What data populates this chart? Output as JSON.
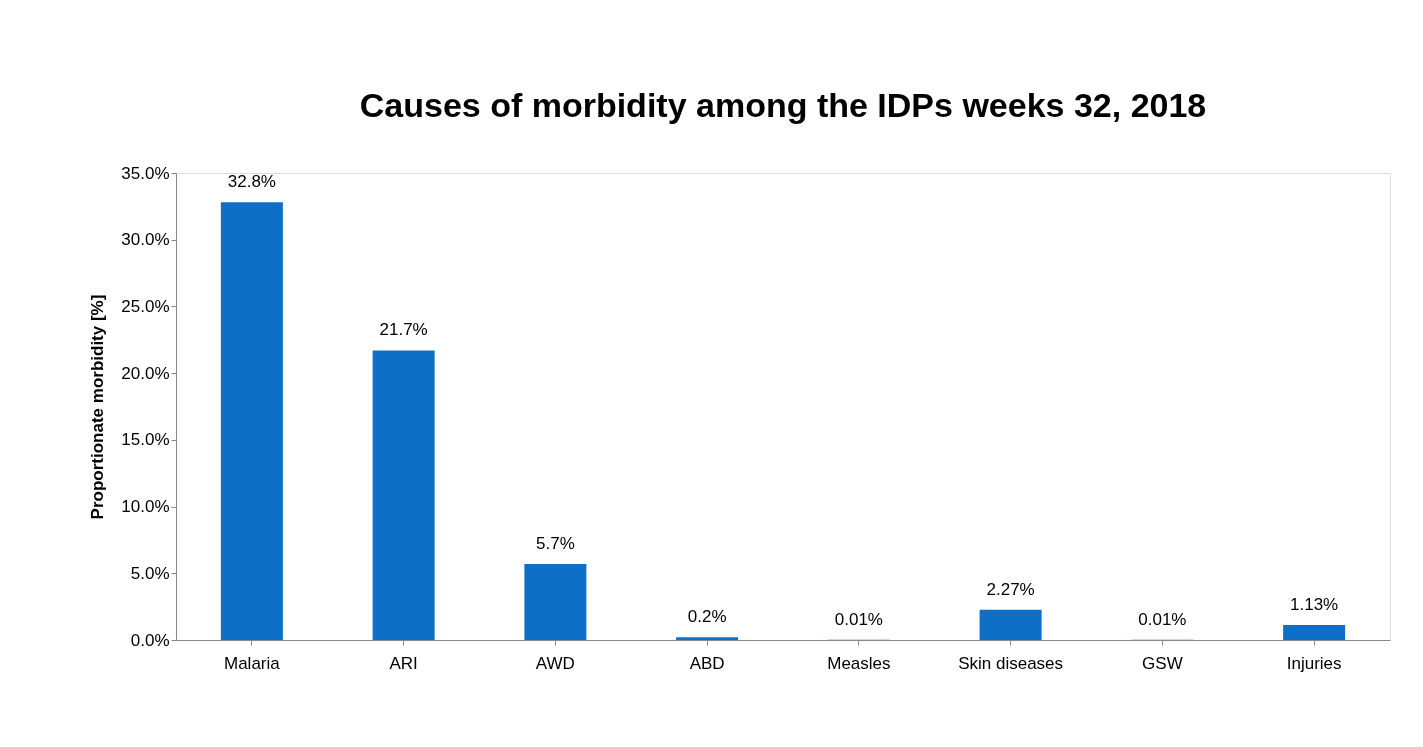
{
  "chart_data": {
    "type": "bar",
    "title": "Causes of morbidity among the IDPs weeks 32, 2018",
    "ylabel": "Proportionate morbidity [%]",
    "categories": [
      "Malaria",
      "ARI",
      "AWD",
      "ABD",
      "Measles",
      "Skin diseases",
      "GSW",
      "Injuries"
    ],
    "values": [
      32.8,
      21.7,
      5.7,
      0.2,
      0.01,
      2.27,
      0.01,
      1.13
    ],
    "value_labels": [
      "32.8%",
      "21.7%",
      "5.7%",
      "0.2%",
      "0.01%",
      "2.27%",
      "0.01%",
      "1.13%"
    ],
    "color": "#0e6fc7",
    "ylim": [
      0,
      35
    ],
    "yticks": [
      {
        "value": 0,
        "label": "0.0%"
      },
      {
        "value": 5,
        "label": "5.0%"
      },
      {
        "value": 10,
        "label": "10.0%"
      },
      {
        "value": 15,
        "label": "15.0%"
      },
      {
        "value": 20,
        "label": "20.0%"
      },
      {
        "value": 25,
        "label": "25.0%"
      },
      {
        "value": 30,
        "label": "30.0%"
      },
      {
        "value": 35,
        "label": "35.0%"
      }
    ],
    "grid": false
  }
}
